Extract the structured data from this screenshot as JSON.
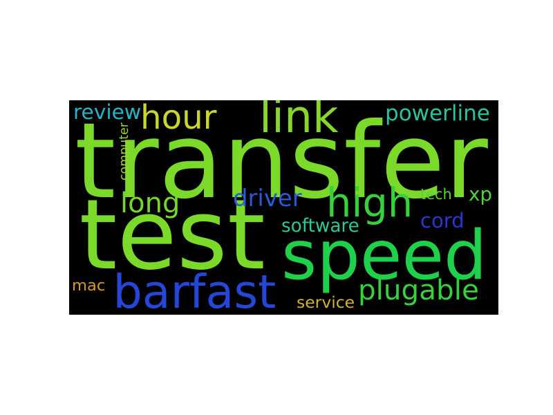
{
  "wordcloud": {
    "words": [
      {
        "key": "transfer",
        "text": "transfer",
        "color": "#7bd92a"
      },
      {
        "key": "test",
        "text": "test",
        "color": "#7bd92a"
      },
      {
        "key": "speed",
        "text": "speed",
        "color": "#1fd14a"
      },
      {
        "key": "barfast",
        "text": "barfast",
        "color": "#2546d6"
      },
      {
        "key": "high",
        "text": "high",
        "color": "#36d23c"
      },
      {
        "key": "hour",
        "text": "hour",
        "color": "#c9d62a"
      },
      {
        "key": "link",
        "text": "link",
        "color": "#86d62d"
      },
      {
        "key": "plugable",
        "text": "plugable",
        "color": "#36d23c"
      },
      {
        "key": "long",
        "text": "long",
        "color": "#76d630"
      },
      {
        "key": "powerline",
        "text": "powerline",
        "color": "#26c4a0"
      },
      {
        "key": "driver",
        "text": "driver",
        "color": "#2b5ad0"
      },
      {
        "key": "review",
        "text": "review",
        "color": "#26b4c8"
      },
      {
        "key": "cord",
        "text": "cord",
        "color": "#2a36d0"
      },
      {
        "key": "xp",
        "text": "xp",
        "color": "#4fd23a"
      },
      {
        "key": "software",
        "text": "software",
        "color": "#2cc898"
      },
      {
        "key": "mac",
        "text": "mac",
        "color": "#d89a22"
      },
      {
        "key": "service",
        "text": "service",
        "color": "#d0b52a"
      },
      {
        "key": "tech",
        "text": "tech",
        "color": "#5fd036"
      },
      {
        "key": "computer",
        "text": "computer",
        "color": "#a4d42c"
      }
    ]
  }
}
